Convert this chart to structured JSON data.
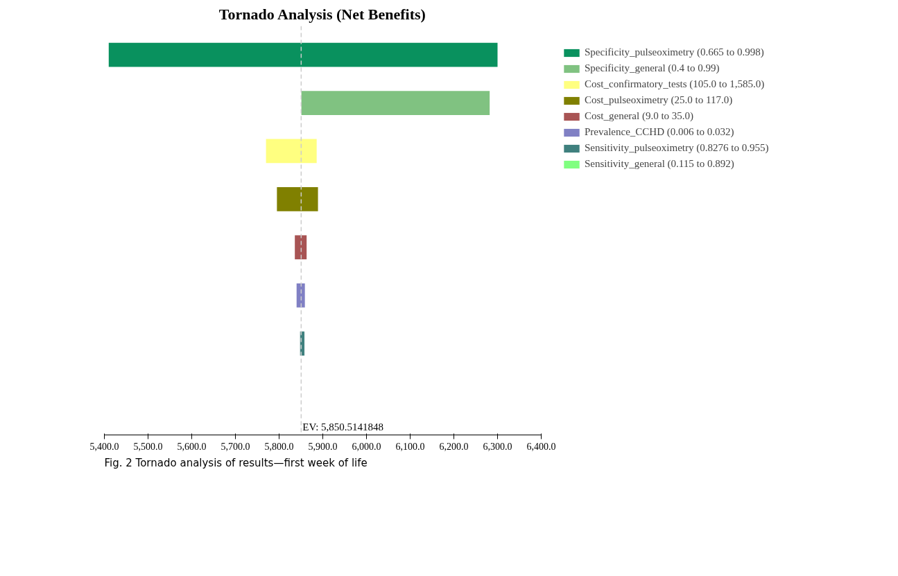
{
  "chart_data": {
    "type": "bar",
    "orientation": "horizontal",
    "title": "Tornado Analysis (Net Benefits)",
    "categories": [
      null,
      null,
      null,
      null,
      null,
      null,
      null,
      null
    ],
    "series": [
      {
        "name": "Specificity_pulseoximetry (0.665 to 0.998)",
        "color": "#09915e",
        "base": [
          5410,
          null,
          null,
          null,
          null,
          null,
          null,
          null
        ],
        "values": [
          890,
          null,
          null,
          null,
          null,
          null,
          null,
          null
        ]
      },
      {
        "name": "Specificity_general (0.4 to 0.99)",
        "color": "#80c281",
        "base": [
          null,
          5851,
          null,
          null,
          null,
          null,
          null,
          null
        ],
        "values": [
          null,
          431,
          null,
          null,
          null,
          null,
          null,
          null
        ]
      },
      {
        "name": "Cost_confirmatory_tests (105.0 to 1,585.0)",
        "color": "#ffff80",
        "base": [
          null,
          null,
          5770,
          null,
          null,
          null,
          null,
          null
        ],
        "values": [
          null,
          null,
          116,
          null,
          null,
          null,
          null,
          null
        ]
      },
      {
        "name": "Cost_pulseoximetry (25.0 to 117.0)",
        "color": "#808000",
        "base": [
          null,
          null,
          null,
          5795,
          null,
          null,
          null,
          null
        ],
        "values": [
          null,
          null,
          null,
          94,
          null,
          null,
          null,
          null
        ]
      },
      {
        "name": "Cost_general (9.0 to 35.0)",
        "color": "#a85454",
        "base": [
          null,
          null,
          null,
          null,
          5836,
          null,
          null,
          null
        ],
        "values": [
          null,
          null,
          null,
          null,
          27,
          null,
          null,
          null
        ]
      },
      {
        "name": "Prevalence_CCHD (0.006 to 0.032)",
        "color": "#8080c4",
        "base": [
          null,
          null,
          null,
          null,
          null,
          5840,
          null,
          null
        ],
        "values": [
          null,
          null,
          null,
          null,
          null,
          19,
          null,
          null
        ]
      },
      {
        "name": "Sensitivity_pulseoximetry (0.8276 to 0.955)",
        "color": "#3f807e",
        "base": [
          null,
          null,
          null,
          null,
          null,
          null,
          5848,
          null
        ],
        "values": [
          null,
          null,
          null,
          null,
          null,
          null,
          10,
          null
        ]
      },
      {
        "name": "Sensitivity_general (0.115 to 0.892)",
        "color": "#80ff80",
        "values": [
          null,
          null,
          null,
          null,
          null,
          null,
          null,
          null
        ]
      }
    ],
    "xlim": [
      5400,
      6400
    ],
    "xticks": [
      {
        "value": 5400,
        "label": "5,400.0"
      },
      {
        "value": 5500,
        "label": "5,500.0"
      },
      {
        "value": 5600,
        "label": "5,600.0"
      },
      {
        "value": 5700,
        "label": "5,700.0"
      },
      {
        "value": 5800,
        "label": "5,800.0"
      },
      {
        "value": 5900,
        "label": "5,900.0"
      },
      {
        "value": 6000,
        "label": "6,000.0"
      },
      {
        "value": 6100,
        "label": "6,100.0"
      },
      {
        "value": 6200,
        "label": "6,200.0"
      },
      {
        "value": 6300,
        "label": "6,300.0"
      },
      {
        "value": 6400,
        "label": "6,400.0"
      }
    ],
    "ref_lines": [
      {
        "axis": "x",
        "value": 5850.5141848,
        "label": "EV: 5,850.5141848",
        "color": "#cccccc",
        "line_style": "dashed"
      }
    ],
    "annotations": [
      "Fig. 2 Tornado analysis of results—first week of life"
    ],
    "legend": "right",
    "grid": false,
    "tick_labels": "x"
  }
}
